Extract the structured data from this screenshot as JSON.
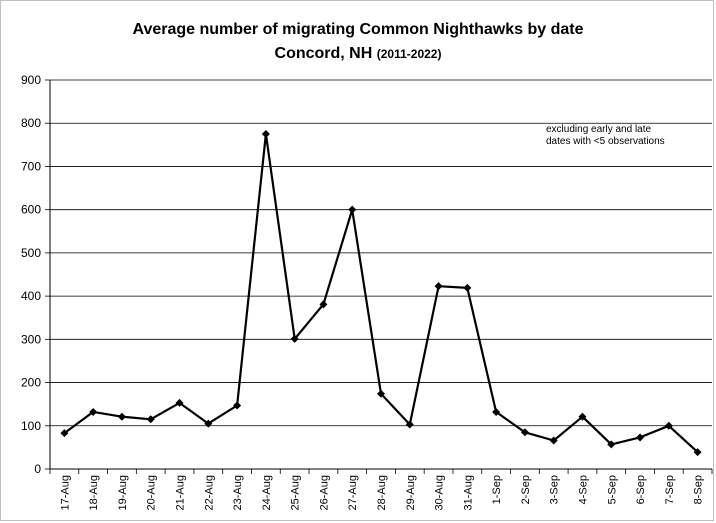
{
  "chart_data": {
    "type": "line",
    "title": "Average number of migrating Common Nighthawks by date",
    "subtitle": "Concord, NH",
    "subtitle_years": "(2011-2022)",
    "annotation": [
      "excluding early and late",
      "dates with <5 observations"
    ],
    "categories": [
      "17-Aug",
      "18-Aug",
      "19-Aug",
      "20-Aug",
      "21-Aug",
      "22-Aug",
      "23-Aug",
      "24-Aug",
      "25-Aug",
      "26-Aug",
      "27-Aug",
      "28-Aug",
      "29-Aug",
      "30-Aug",
      "31-Aug",
      "1-Sep",
      "2-Sep",
      "3-Sep",
      "4-Sep",
      "5-Sep",
      "6-Sep",
      "7-Sep",
      "8-Sep"
    ],
    "values": [
      83,
      132,
      121,
      115,
      153,
      105,
      147,
      775,
      301,
      381,
      600,
      174,
      103,
      423,
      419,
      132,
      85,
      66,
      121,
      57,
      73,
      100,
      39
    ],
    "ylim": [
      0,
      900
    ],
    "yticks": [
      0,
      100,
      200,
      300,
      400,
      500,
      600,
      700,
      800,
      900
    ],
    "grid": true,
    "colors": {
      "line": "#000000",
      "grid": "#000000"
    }
  }
}
